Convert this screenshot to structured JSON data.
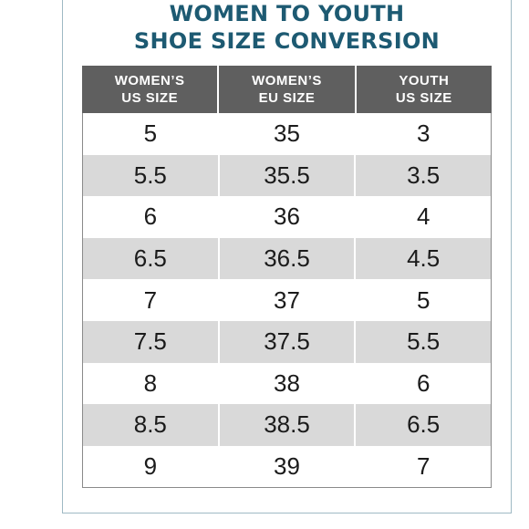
{
  "title": {
    "line1": "WOMEN TO YOUTH",
    "line2": "SHOE SIZE CONVERSION"
  },
  "table": {
    "headers": [
      {
        "line1": "WOMEN’S",
        "line2": "US SIZE"
      },
      {
        "line1": "WOMEN’S",
        "line2": "EU SIZE"
      },
      {
        "line1": "YOUTH",
        "line2": "US SIZE"
      }
    ],
    "rows": [
      [
        "5",
        "35",
        "3"
      ],
      [
        "5.5",
        "35.5",
        "3.5"
      ],
      [
        "6",
        "36",
        "4"
      ],
      [
        "6.5",
        "36.5",
        "4.5"
      ],
      [
        "7",
        "37",
        "5"
      ],
      [
        "7.5",
        "37.5",
        "5.5"
      ],
      [
        "8",
        "38",
        "6"
      ],
      [
        "8.5",
        "38.5",
        "6.5"
      ],
      [
        "9",
        "39",
        "7"
      ]
    ]
  },
  "colors": {
    "title": "#1d5a72",
    "header_bg": "#5f5f5f",
    "stripe_bg": "#d9d9d9",
    "frame_border": "#9fb9c4"
  }
}
